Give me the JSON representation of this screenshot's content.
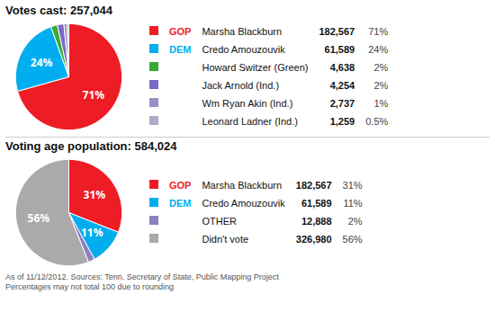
{
  "chart_data": [
    {
      "type": "pie",
      "title": "Votes cast: 257,044",
      "categories": [
        "Marsha Blackburn",
        "Credo Amouzouvik",
        "Howard Switzer (Green)",
        "Jack Arnold (Ind.)",
        "Wm Ryan Akin (Ind.)",
        "Leonard Ladner (Ind.)"
      ],
      "values": [
        71,
        24,
        2,
        2,
        1,
        0.5
      ],
      "value_labels": [
        "71%",
        "24%",
        "2%",
        "2%",
        "1%",
        "0.5%"
      ],
      "data_labels": true,
      "colors": [
        "#ee1c25",
        "#00aeef",
        "#3aaa35",
        "#7b68c8",
        "#9b8ec4",
        "#b0aac8"
      ],
      "parties": [
        "GOP",
        "DEM",
        null,
        null,
        null,
        null
      ],
      "counts": [
        182567,
        61589,
        4638,
        4254,
        2737,
        1259
      ]
    },
    {
      "type": "pie",
      "title": "Voting age population: 584,024",
      "categories": [
        "Marsha Blackburn",
        "Credo Amouzouvik",
        "OTHER",
        "Didn't vote"
      ],
      "values": [
        31,
        11,
        2,
        56
      ],
      "value_labels": [
        "31%",
        "11%",
        "2%",
        "56%"
      ],
      "data_labels": true,
      "colors": [
        "#ee1c25",
        "#00aeef",
        "#8b80c0",
        "#aaaaaa"
      ],
      "parties": [
        "GOP",
        "DEM",
        null,
        null
      ],
      "counts": [
        182567,
        61589,
        12888,
        326980
      ],
      "caption": "As of 11/12/2012. Sources: Tenn. Secretary of State, Public Mapping Project\nPercentages may not total 100 due to rounding"
    }
  ]
}
